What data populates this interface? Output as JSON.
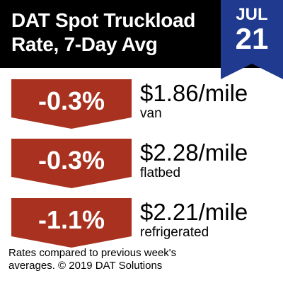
{
  "header": {
    "title_line1": "DAT Spot Truckload",
    "title_line2": "Rate, 7-Day Avg"
  },
  "date": {
    "month": "JUL",
    "day": "21"
  },
  "rates": [
    {
      "change": "-0.3%",
      "price": "$1.86/mile",
      "type": "van"
    },
    {
      "change": "-0.3%",
      "price": "$2.28/mile",
      "type": "flatbed"
    },
    {
      "change": "-1.1%",
      "price": "$2.21/mile",
      "type": "refrigerated"
    }
  ],
  "footnote": {
    "line1": "Rates compared to previous week's",
    "line2": "averages. © 2019 DAT Solutions"
  },
  "colors": {
    "header_bg": "#000000",
    "date_flag": "#1f3a8f",
    "badge": "#a8321f"
  }
}
